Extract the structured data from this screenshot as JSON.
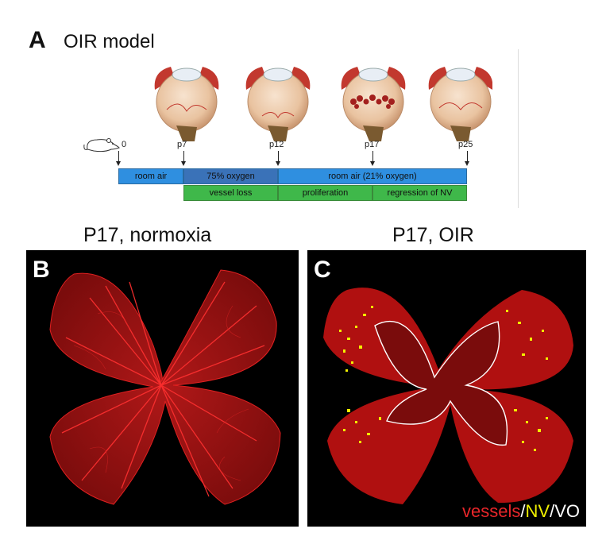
{
  "panel_a": {
    "letter": "A",
    "title": "OIR model",
    "timepoints": [
      "0",
      "p7",
      "p12",
      "p17",
      "p25"
    ],
    "bars_top": [
      "room air",
      "75% oxygen",
      "room air (21% oxygen)"
    ],
    "bars_bottom": [
      "vessel loss",
      "proliferation",
      "regression of NV"
    ],
    "colors": {
      "blue": "#2f8fe0",
      "dark_blue": "#3a72b8",
      "green": "#3fb84a"
    }
  },
  "panel_b": {
    "letter": "B",
    "title": "P17, normoxia"
  },
  "panel_c": {
    "letter": "C",
    "title": "P17, OIR",
    "legend": {
      "vessels": "vessels",
      "sep1": "/",
      "nv": "NV",
      "sep2": "/",
      "vo": "VO"
    },
    "colors": {
      "vessels": "#e8262a",
      "nv": "#f0f000",
      "vo": "#ffffff"
    }
  }
}
